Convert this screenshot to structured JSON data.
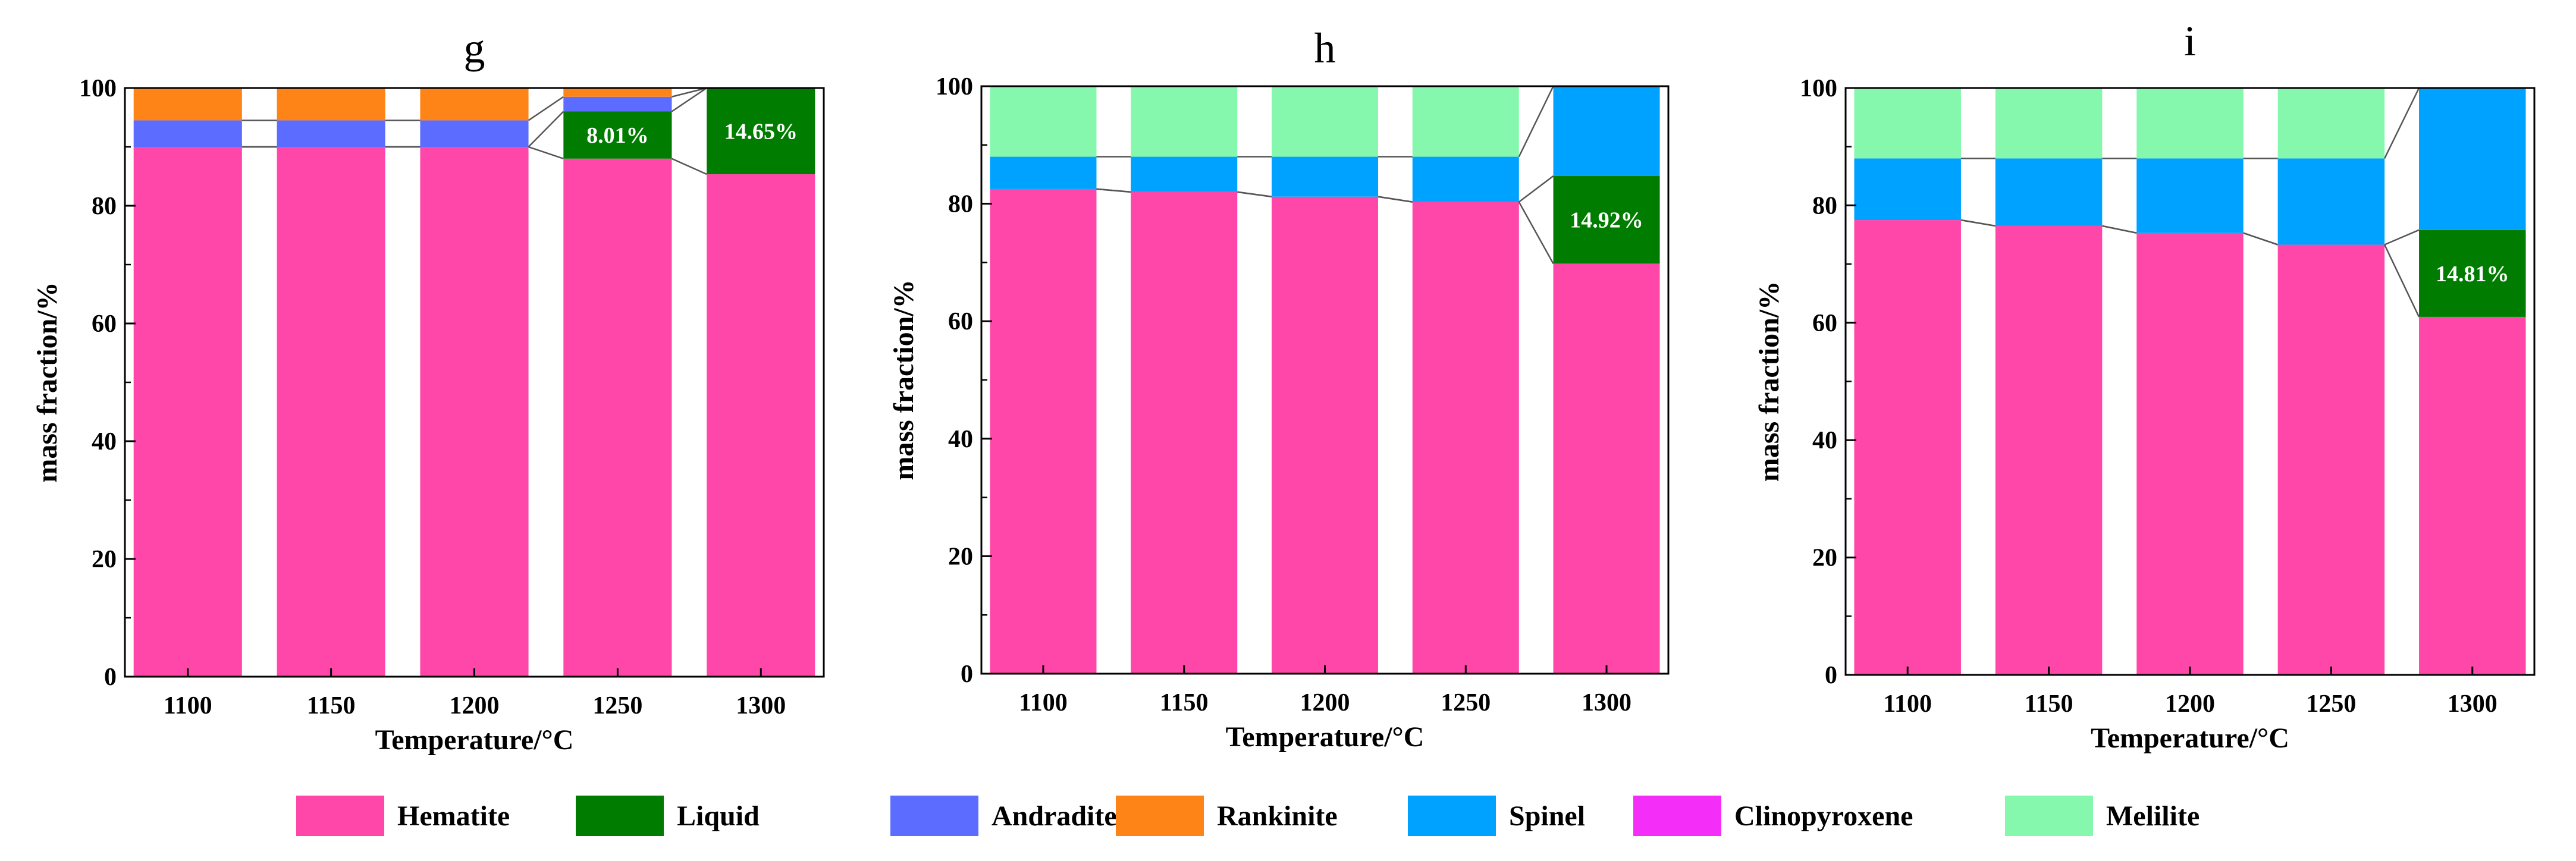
{
  "chart_data": [
    {
      "type": "bar",
      "stacked": true,
      "title": "g",
      "xlabel": "Temperature/°C",
      "ylabel": "mass fraction/%",
      "ylim": [
        0,
        100
      ],
      "yticks": [
        "0",
        "20",
        "40",
        "60",
        "80",
        "100"
      ],
      "categories": [
        "1100",
        "1150",
        "1200",
        "1250",
        "1300"
      ],
      "series": [
        {
          "name": "Hematite",
          "values": [
            90.0,
            90.0,
            90.0,
            88.0,
            85.35
          ]
        },
        {
          "name": "Liquid",
          "values": [
            0,
            0,
            0,
            8.01,
            14.65
          ]
        },
        {
          "name": "Andradite",
          "values": [
            4.5,
            4.5,
            4.5,
            2.5,
            0
          ]
        },
        {
          "name": "Rankinite",
          "values": [
            5.5,
            5.5,
            5.5,
            1.49,
            0
          ]
        }
      ],
      "annotations": [
        {
          "category": "1250",
          "series": "Liquid",
          "text": "8.01%"
        },
        {
          "category": "1300",
          "series": "Liquid",
          "text": "14.65%"
        }
      ]
    },
    {
      "type": "bar",
      "stacked": true,
      "title": "h",
      "xlabel": "Temperature/°C",
      "ylabel": "mass fraction/%",
      "ylim": [
        0,
        100
      ],
      "yticks": [
        "0",
        "20",
        "40",
        "60",
        "80",
        "100"
      ],
      "categories": [
        "1100",
        "1150",
        "1200",
        "1250",
        "1300"
      ],
      "series": [
        {
          "name": "Hematite",
          "values": [
            82.5,
            82.0,
            81.2,
            80.3,
            69.8
          ]
        },
        {
          "name": "Liquid",
          "values": [
            0,
            0,
            0,
            0,
            14.92
          ]
        },
        {
          "name": "Spinel",
          "values": [
            5.5,
            6.0,
            6.8,
            7.7,
            15.28
          ]
        },
        {
          "name": "Melilite",
          "values": [
            12.0,
            12.0,
            12.0,
            12.0,
            0
          ]
        }
      ],
      "annotations": [
        {
          "category": "1300",
          "series": "Liquid",
          "text": "14.92%"
        }
      ]
    },
    {
      "type": "bar",
      "stacked": true,
      "title": "i",
      "xlabel": "Temperature/°C",
      "ylabel": "mass fraction/%",
      "ylim": [
        0,
        100
      ],
      "yticks": [
        "0",
        "20",
        "40",
        "60",
        "80",
        "100"
      ],
      "categories": [
        "1100",
        "1150",
        "1200",
        "1250",
        "1300"
      ],
      "series": [
        {
          "name": "Hematite",
          "values": [
            77.5,
            76.5,
            75.3,
            73.3,
            61.0
          ]
        },
        {
          "name": "Liquid",
          "values": [
            0,
            0,
            0,
            0,
            14.81
          ]
        },
        {
          "name": "Spinel",
          "values": [
            10.5,
            11.5,
            12.7,
            14.7,
            24.19
          ]
        },
        {
          "name": "Melilite",
          "values": [
            12.0,
            12.0,
            12.0,
            12.0,
            0
          ]
        }
      ],
      "annotations": [
        {
          "category": "1300",
          "series": "Liquid",
          "text": "14.81%"
        }
      ]
    }
  ],
  "legend": [
    {
      "name": "Hematite",
      "color": "#FF47AA"
    },
    {
      "name": "Liquid",
      "color": "#007D00"
    },
    {
      "name": "Andradite",
      "color": "#5B6CFF"
    },
    {
      "name": "Rankinite",
      "color": "#FF8418"
    },
    {
      "name": "Spinel",
      "color": "#00A2FF"
    },
    {
      "name": "Clinopyroxene",
      "color": "#F52DF8"
    },
    {
      "name": "Melilite",
      "color": "#86F8AE"
    }
  ]
}
